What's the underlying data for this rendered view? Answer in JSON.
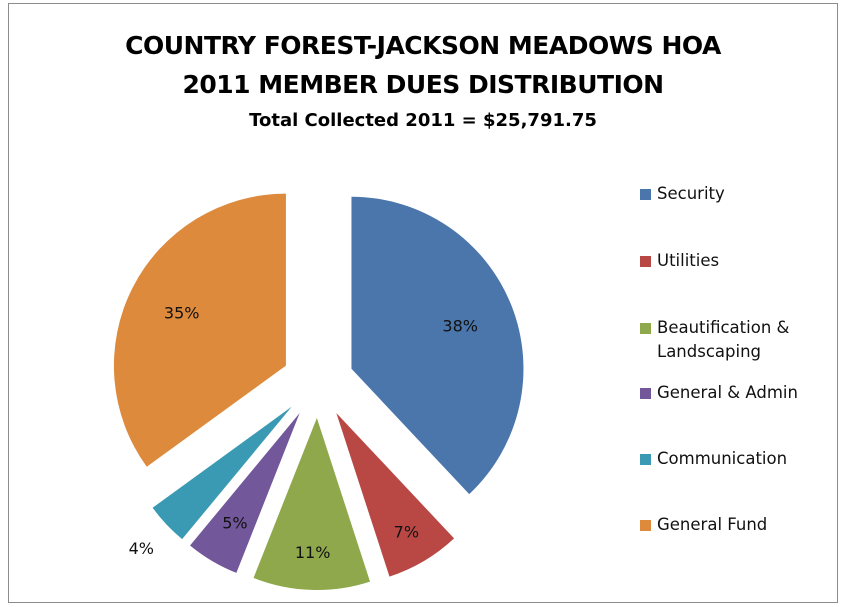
{
  "chart_data": {
    "type": "pie",
    "title": "COUNTRY FOREST-JACKSON MEADOWS HOA",
    "subtitle": "2011 MEMBER DUES DISTRIBUTION",
    "note": "Total Collected 2011 = $25,791.75",
    "legend_position": "right",
    "exploded": true,
    "slices": [
      {
        "name": "Security",
        "legend": [
          "Security"
        ],
        "value": 38,
        "label": "38%",
        "color": "#4a76ab"
      },
      {
        "name": "Utilities",
        "legend": [
          " Utilities"
        ],
        "value": 7,
        "label": "7%",
        "color": "#b94845"
      },
      {
        "name": "Beautification & Landscaping",
        "legend": [
          " Beautification &",
          " Landscaping"
        ],
        "value": 11,
        "label": "11%",
        "color": "#8ea84b"
      },
      {
        "name": "General & Admin",
        "legend": [
          " General & Admin"
        ],
        "value": 5,
        "label": "5%",
        "color": "#72589a"
      },
      {
        "name": "Communication",
        "legend": [
          " Communication"
        ],
        "value": 4,
        "label": "4%",
        "color": "#3a9ab3"
      },
      {
        "name": "General Fund",
        "legend": [
          "General Fund"
        ],
        "value": 35,
        "label": "35%",
        "color": "#dd8a3c"
      }
    ]
  }
}
